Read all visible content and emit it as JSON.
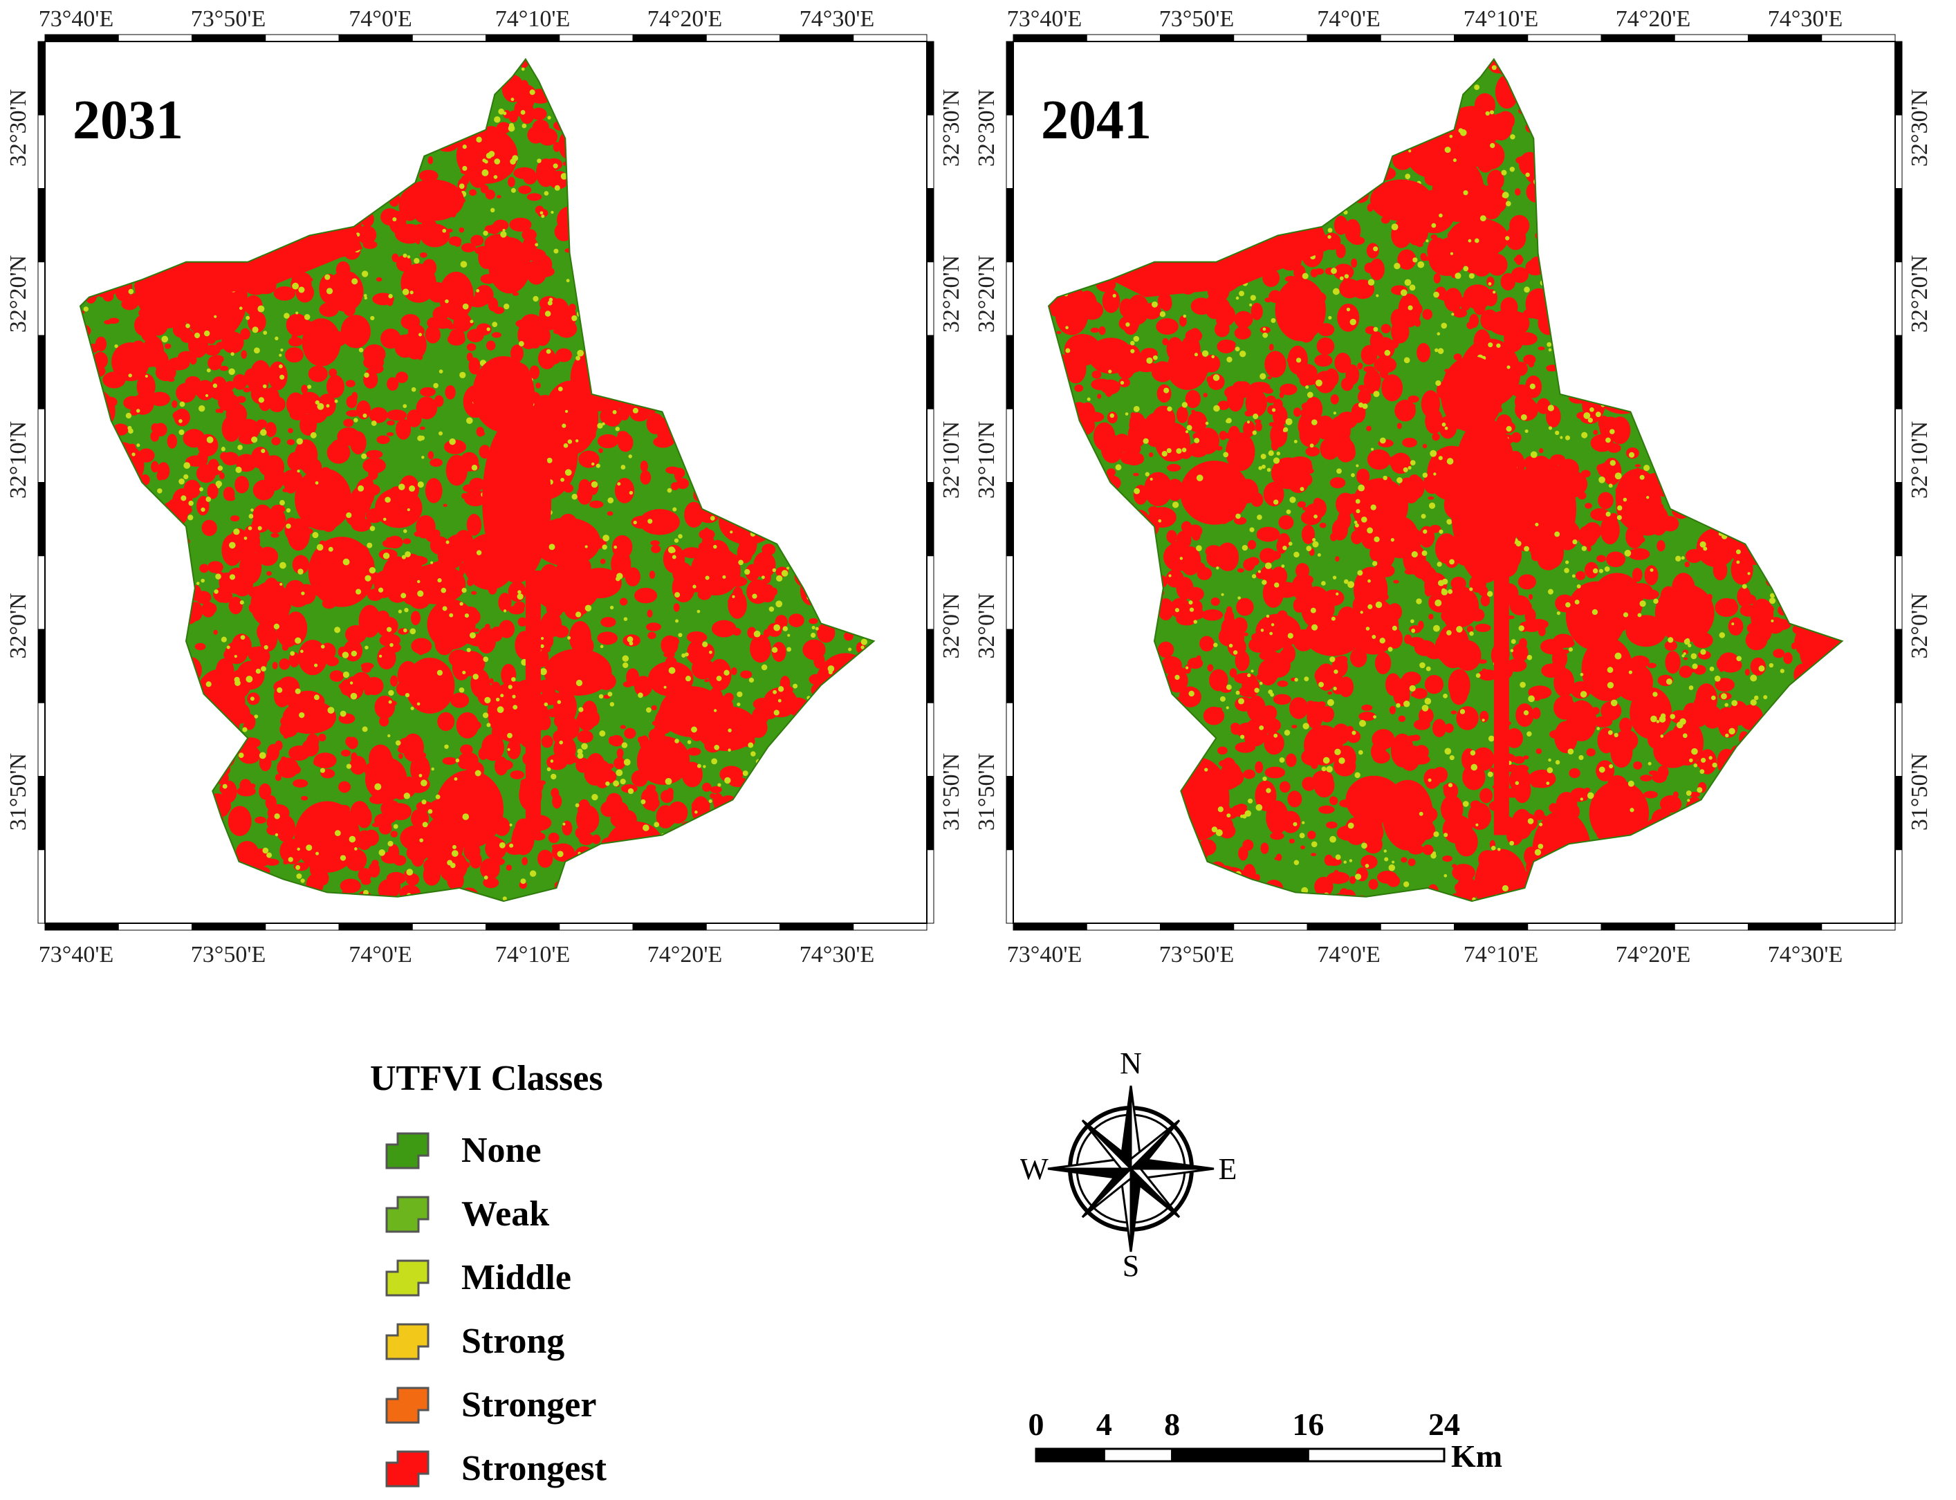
{
  "maps": [
    {
      "year": "2031"
    },
    {
      "year": "2041"
    }
  ],
  "lon_labels": [
    "73°40'E",
    "73°50'E",
    "74°0'E",
    "74°10'E",
    "74°20'E",
    "74°30'E"
  ],
  "lat_labels": [
    "32°30'N",
    "32°20'N",
    "32°10'N",
    "32°0'N",
    "31°50'N"
  ],
  "legend": {
    "title": "UTFVI Classes",
    "classes": [
      {
        "label": "None",
        "color": "#3e9a12"
      },
      {
        "label": "Weak",
        "color": "#6db51c"
      },
      {
        "label": "Middle",
        "color": "#c7de1d"
      },
      {
        "label": "Strong",
        "color": "#f2c91b"
      },
      {
        "label": "Stronger",
        "color": "#f26a12"
      },
      {
        "label": "Strongest",
        "color": "#ff1010"
      }
    ]
  },
  "north_arrow": {
    "n": "N",
    "s": "S",
    "e": "E",
    "w": "W"
  },
  "scale_bar": {
    "ticks": [
      "0",
      "4",
      "8",
      "16",
      "24"
    ],
    "unit": "Km"
  },
  "colors": {
    "none": "#3e9a12",
    "strongest": "#ff1010",
    "middle": "#c7de1d",
    "frame": "#000000"
  }
}
